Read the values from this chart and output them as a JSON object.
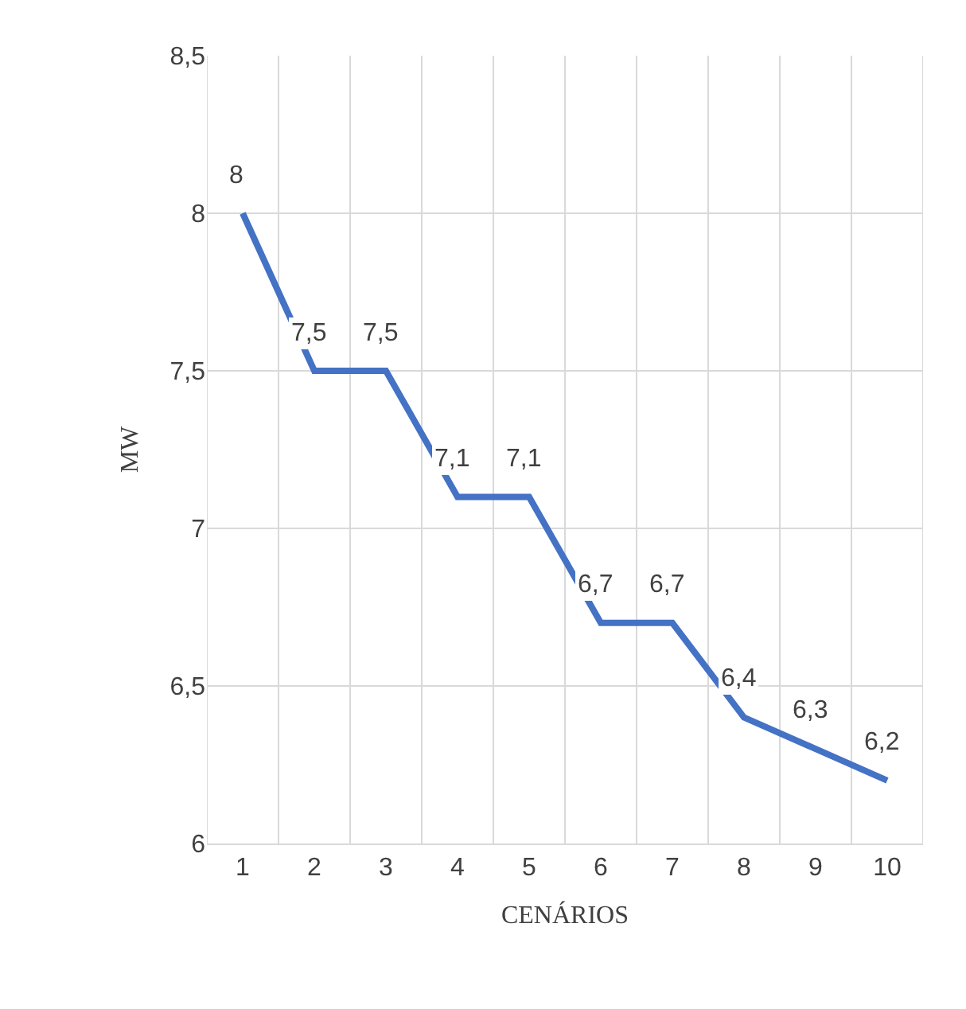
{
  "chart_data": {
    "type": "line",
    "xlabel": "CENÁRIOS",
    "ylabel": "MW",
    "categories": [
      "1",
      "2",
      "3",
      "4",
      "5",
      "6",
      "7",
      "8",
      "9",
      "10"
    ],
    "series": [
      {
        "color": "#4472c4",
        "values": [
          8,
          7.5,
          7.5,
          7.1,
          7.1,
          6.7,
          6.7,
          6.4,
          6.3,
          6.2
        ],
        "value_labels": [
          "8",
          "7,5",
          "7,5",
          "7,1",
          "7,1",
          "6,7",
          "6,7",
          "6,4",
          "6,3",
          "6,2"
        ]
      }
    ],
    "ylim": [
      6,
      8.5
    ],
    "yticks": [
      6,
      {
        "value": 6.5,
        "label": "6,5"
      },
      7,
      {
        "value": 7.5,
        "label": "7,5"
      },
      8,
      {
        "value": 8.5,
        "label": "8,5"
      }
    ],
    "grid": true,
    "marker": "none",
    "line_style": "solid"
  }
}
